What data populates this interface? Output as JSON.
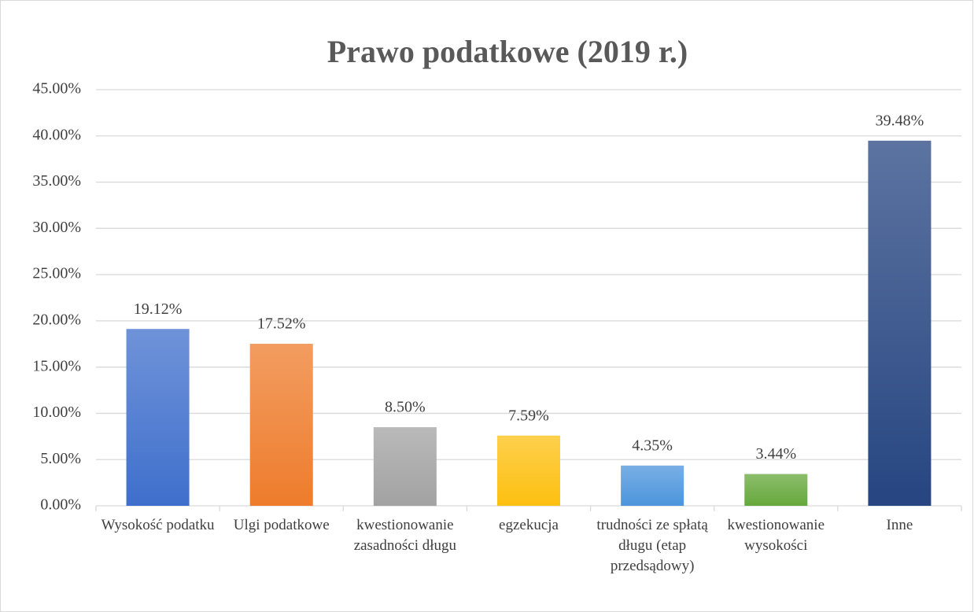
{
  "chart_data": {
    "type": "bar",
    "title": "Prawo podatkowe (2019 r.)",
    "categories": [
      "Wysokość podatku",
      "Ulgi podatkowe",
      "kwestionowanie zasadności długu",
      "egzekucja",
      "trudności ze spłatą długu (etap przedsądowy)",
      "kwestionowanie wysokości",
      "Inne"
    ],
    "values": [
      19.12,
      17.52,
      8.5,
      7.59,
      4.35,
      3.44,
      39.48
    ],
    "value_labels": [
      "19.12%",
      "17.52%",
      "8.50%",
      "7.59%",
      "4.35%",
      "3.44%",
      "39.48%"
    ],
    "colors": [
      "#3f6fcc",
      "#ee7c2c",
      "#a2a2a2",
      "#fdc011",
      "#4c95dc",
      "#66a83c",
      "#264581"
    ],
    "ylim": [
      0,
      45
    ],
    "yticks": [
      {
        "value": 0,
        "label": "0.00%"
      },
      {
        "value": 5,
        "label": "5.00%"
      },
      {
        "value": 10,
        "label": "10.00%"
      },
      {
        "value": 15,
        "label": "15.00%"
      },
      {
        "value": 20,
        "label": "20.00%"
      },
      {
        "value": 25,
        "label": "25.00%"
      },
      {
        "value": 30,
        "label": "30.00%"
      },
      {
        "value": 35,
        "label": "35.00%"
      },
      {
        "value": 40,
        "label": "40.00%"
      },
      {
        "value": 45,
        "label": "45.00%"
      }
    ],
    "grid": true
  }
}
